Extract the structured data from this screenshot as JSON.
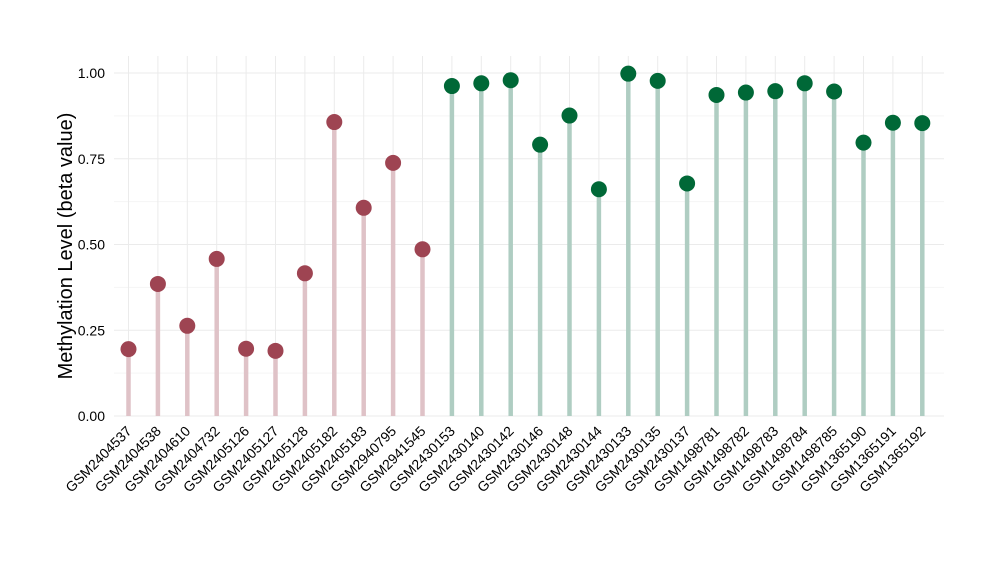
{
  "chart_data": {
    "type": "lollipop",
    "title": "",
    "xlabel": "",
    "ylabel": "Methylation Level (beta value)",
    "ylim": [
      0,
      1.0
    ],
    "yticks": [
      0.0,
      0.25,
      0.5,
      0.75,
      1.0
    ],
    "ytick_labels": [
      "0.00",
      "0.25",
      "0.50",
      "0.75",
      "1.00"
    ],
    "grid": true,
    "legend": "none",
    "colors": {
      "group_a_point": "#9e4452",
      "group_a_stem": "#dfc2c7",
      "group_b_point": "#006837",
      "group_b_stem": "#afcdc2",
      "major_grid": "#ebebeb",
      "minor_grid": "#f5f5f5"
    },
    "categories": [
      "GSM2404537",
      "GSM2404538",
      "GSM2404610",
      "GSM2404732",
      "GSM2405126",
      "GSM2405127",
      "GSM2405128",
      "GSM2405182",
      "GSM2405183",
      "GSM2940795",
      "GSM2941545",
      "GSM2430153",
      "GSM2430140",
      "GSM2430142",
      "GSM2430146",
      "GSM2430148",
      "GSM2430144",
      "GSM2430133",
      "GSM2430135",
      "GSM2430137",
      "GSM1498781",
      "GSM1498782",
      "GSM1498783",
      "GSM1498784",
      "GSM1498785",
      "GSM1365190",
      "GSM1365191",
      "GSM1365192"
    ],
    "values": [
      0.195,
      0.385,
      0.263,
      0.458,
      0.196,
      0.19,
      0.416,
      0.857,
      0.607,
      0.738,
      0.486,
      0.962,
      0.97,
      0.979,
      0.791,
      0.876,
      0.661,
      0.998,
      0.977,
      0.678,
      0.936,
      0.943,
      0.947,
      0.97,
      0.946,
      0.797,
      0.855,
      0.854
    ],
    "groups": [
      "a",
      "a",
      "a",
      "a",
      "a",
      "a",
      "a",
      "a",
      "a",
      "a",
      "a",
      "b",
      "b",
      "b",
      "b",
      "b",
      "b",
      "b",
      "b",
      "b",
      "b",
      "b",
      "b",
      "b",
      "b",
      "b",
      "b",
      "b"
    ]
  }
}
